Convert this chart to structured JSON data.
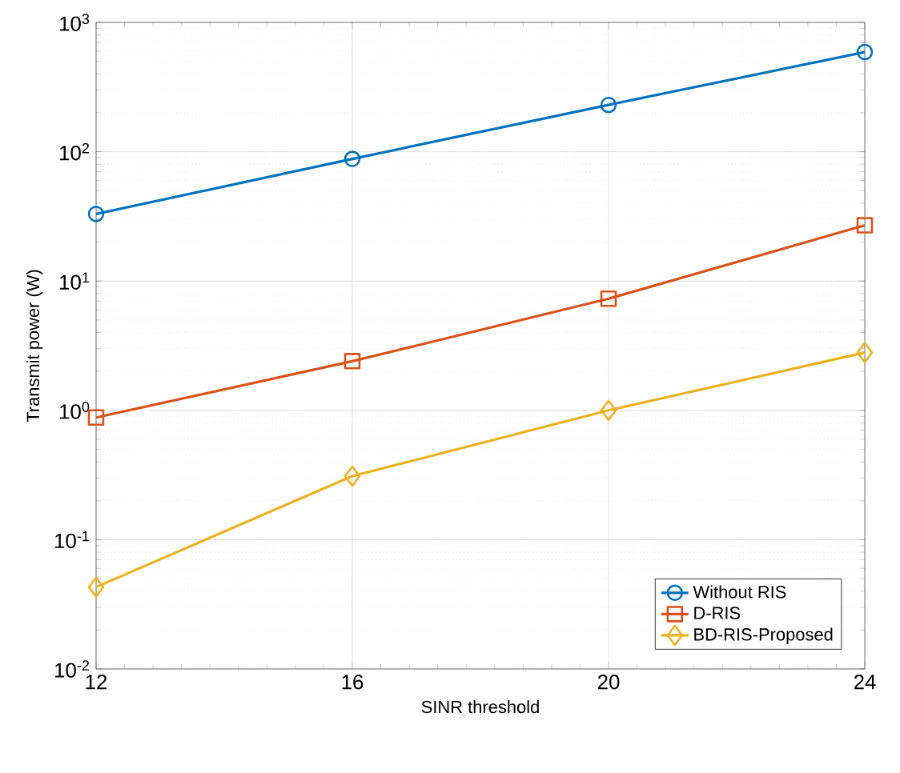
{
  "chart_data": {
    "type": "line",
    "xlabel": "SINR threshold",
    "ylabel": "Transmit power (W)",
    "x": [
      12,
      16,
      20,
      24
    ],
    "xlim": [
      12,
      24
    ],
    "xticks": [
      12,
      16,
      20,
      24
    ],
    "log": "y",
    "ylim": [
      0.01,
      1000
    ],
    "yticks": [
      {
        "value": 0.01,
        "label": "10$^{-2}$"
      },
      {
        "value": 0.1,
        "label": "10$^{-1}$"
      },
      {
        "value": 1,
        "label": "10$^{0}$"
      },
      {
        "value": 10,
        "label": "10$^{1}$"
      },
      {
        "value": 100,
        "label": "10$^{2}$"
      },
      {
        "value": 1000,
        "label": "10$^{3}$"
      }
    ],
    "grid": true,
    "legend": "bottom right",
    "line_style": "solid",
    "series": [
      {
        "name": "Without RIS",
        "color": "#0072bd",
        "marker": "circle",
        "values": [
          33,
          88,
          230,
          590
        ]
      },
      {
        "name": "D-RIS",
        "color": "#d95319",
        "marker": "square",
        "values": [
          0.88,
          2.4,
          7.3,
          27
        ]
      },
      {
        "name": "BD-RIS-Proposed",
        "color": "#edb120",
        "marker": "diamond",
        "values": [
          0.043,
          0.31,
          1.0,
          2.8
        ]
      }
    ]
  }
}
